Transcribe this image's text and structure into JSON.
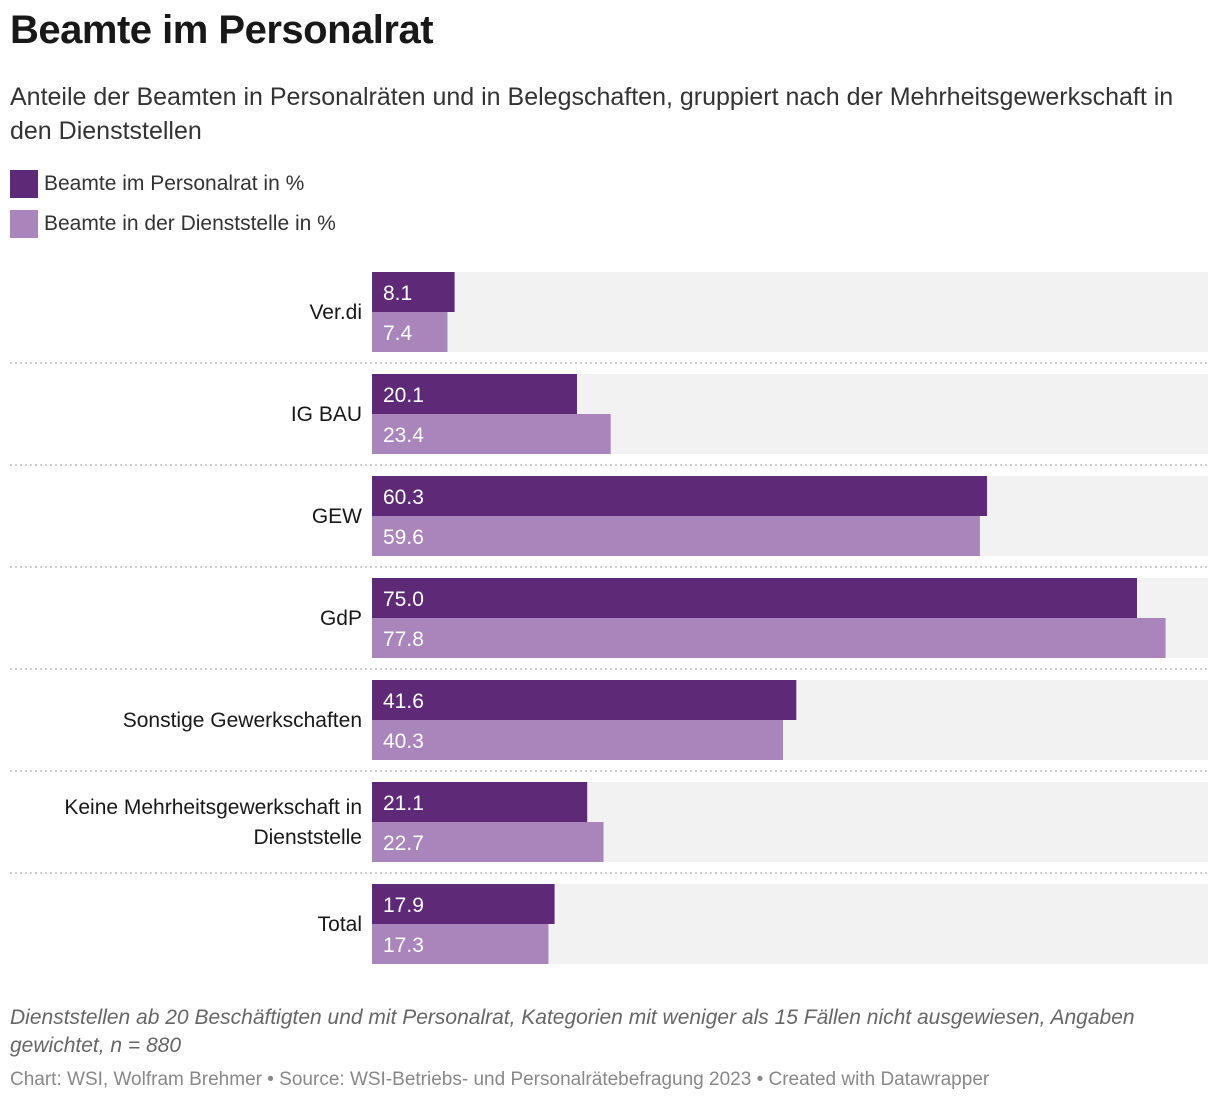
{
  "header": {
    "title": "Beamte im Personalrat",
    "subtitle": "Anteile der Beamten in Personalräten und in Belegschaften, gruppiert nach der Mehrheitsgewerkschaft in den Dienststellen"
  },
  "legend": [
    {
      "label": "Beamte im Personalrat in %",
      "color": "#5e2a78"
    },
    {
      "label": "Beamte in der Dienststelle in %",
      "color": "#a985bb"
    }
  ],
  "footer": {
    "notes": "Dienststellen ab 20 Beschäftigten und mit Personalrat, Kategorien mit weniger als 15 Fällen nicht ausgewiesen, Angaben gewichtet, n = 880",
    "credits": "Chart: WSI, Wolfram Brehmer • Source: WSI-Betriebs- und Personalrätebefragung 2023 • Created with Datawrapper"
  },
  "chart_data": {
    "type": "bar",
    "orientation": "horizontal",
    "title": "Beamte im Personalrat",
    "categories": [
      "Ver.di",
      "IG BAU",
      "GEW",
      "GdP",
      "Sonstige Gewerkschaften",
      "Keine Mehrheitsgewerkschaft in Dienststelle",
      "Total"
    ],
    "series": [
      {
        "name": "Beamte im Personalrat in %",
        "color": "#5e2a78",
        "values": [
          8.1,
          20.1,
          60.3,
          75.0,
          41.6,
          21.1,
          17.9
        ]
      },
      {
        "name": "Beamte in der Dienststelle in %",
        "color": "#a985bb",
        "values": [
          7.4,
          23.4,
          59.6,
          77.8,
          40.3,
          22.7,
          17.3
        ]
      }
    ],
    "value_labels": [
      [
        "8.1",
        "20.1",
        "60.3",
        "75.0",
        "41.6",
        "21.1",
        "17.9"
      ],
      [
        "7.4",
        "23.4",
        "59.6",
        "77.8",
        "40.3",
        "22.7",
        "17.3"
      ]
    ],
    "xlim": [
      0,
      80
    ],
    "background_track_color": "#f2f2f2",
    "grid": false,
    "legend_position": "top-left"
  }
}
